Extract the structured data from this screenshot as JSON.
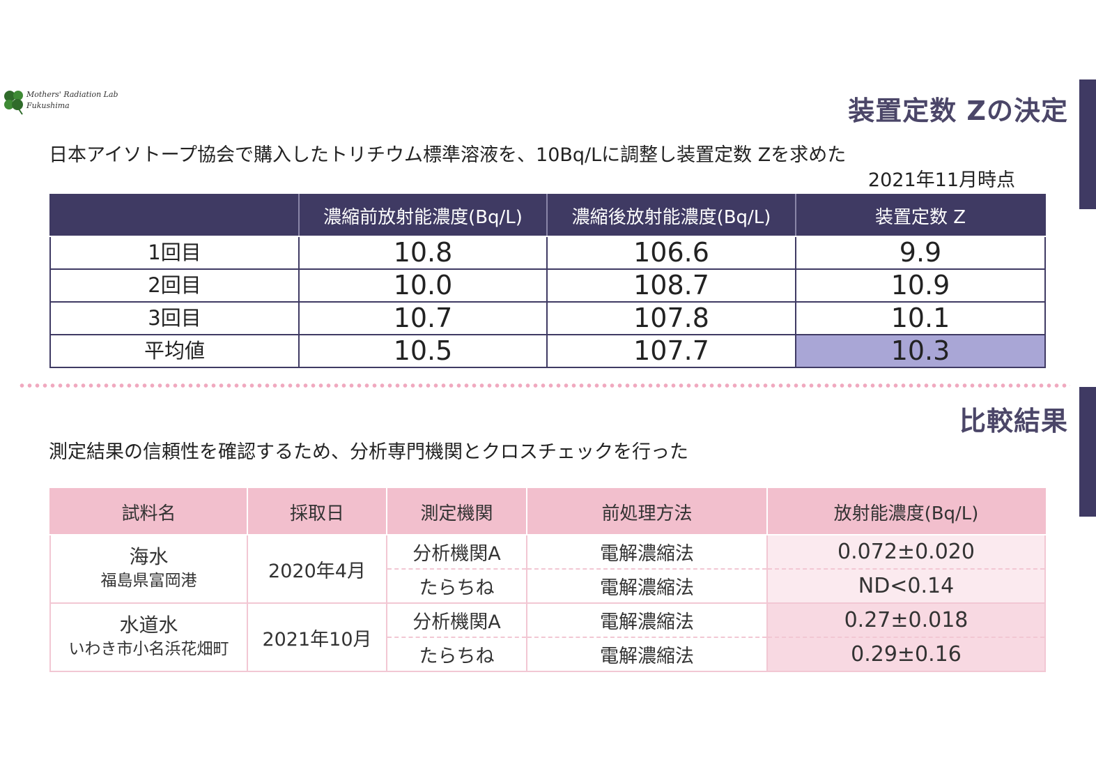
{
  "logo": {
    "line1": "Mothers' Radiation Lab",
    "line2": "Fukushima",
    "sub": ""
  },
  "section1": {
    "heading": "装置定数 Zの決定",
    "lead": "日本アイソトープ協会で購入したトリチウム標準溶液を、10Bq/Lに調整し装置定数 Zを求めた",
    "as_of": "2021年11月時点",
    "table": {
      "headers": [
        "",
        "濃縮前放射能濃度(Bq/L)",
        "濃縮後放射能濃度(Bq/L)",
        "装置定数 Z"
      ],
      "rows": [
        [
          "1回目",
          "10.8",
          "106.6",
          "9.9"
        ],
        [
          "2回目",
          "10.0",
          "108.7",
          "10.9"
        ],
        [
          "3回目",
          "10.7",
          "107.8",
          "10.1"
        ],
        [
          "平均値",
          "10.5",
          "107.7",
          "10.3"
        ]
      ]
    }
  },
  "section2": {
    "heading": "比較結果",
    "lead": "測定結果の信頼性を確認するため、分析専門機関とクロスチェックを行った",
    "table": {
      "headers": [
        "試料名",
        "採取日",
        "測定機関",
        "前処理方法",
        "放射能濃度(Bq/L)"
      ],
      "groups": [
        {
          "sample": "海水",
          "location": "福島県富岡港",
          "date": "2020年4月",
          "rows": [
            {
              "lab": "分析機関A",
              "method": "電解濃縮法",
              "value": "0.072±0.020"
            },
            {
              "lab": "たらちね",
              "method": "電解濃縮法",
              "value": "ND<0.14"
            }
          ]
        },
        {
          "sample": "水道水",
          "location": "いわき市小名浜花畑町",
          "date": "2021年10月",
          "rows": [
            {
              "lab": "分析機関A",
              "method": "電解濃縮法",
              "value": "0.27±0.018"
            },
            {
              "lab": "たらちね",
              "method": "電解濃縮法",
              "value": "0.29±0.16"
            }
          ]
        }
      ]
    }
  },
  "colors": {
    "navy": "#3f3a63",
    "heading": "#4b4668",
    "highlight": "#a9a6d6",
    "pink_header": "#f2bfcd",
    "pink_light": "#fbeaef",
    "pink_mid": "#f8d9e2"
  },
  "icons": {
    "logo": "four-leaf-clover-icon"
  }
}
